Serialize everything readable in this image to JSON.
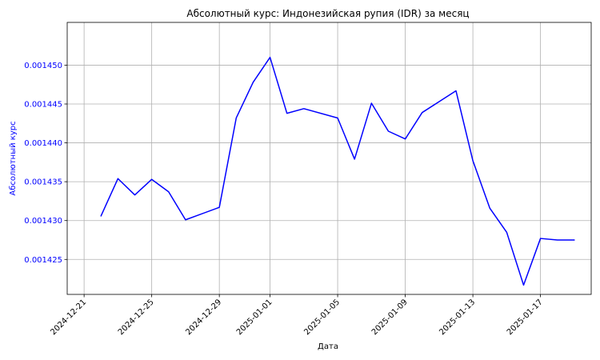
{
  "chart_data": {
    "type": "line",
    "title": "Абсолютный курс: Индонезийская рупия (IDR) за месяц",
    "xlabel": "Дата",
    "ylabel": "Абсолютный курс",
    "grid": true,
    "colors": {
      "line": "#0000ff",
      "ytick_text": "#0000ff",
      "ylabel_text": "#0000ff"
    },
    "xlim": [
      "2024-12-20",
      "2025-01-20"
    ],
    "ylim": [
      0.0014205,
      0.0014555
    ],
    "x_ticks": [
      "2024-12-21",
      "2024-12-25",
      "2024-12-29",
      "2025-01-01",
      "2025-01-05",
      "2025-01-09",
      "2025-01-13",
      "2025-01-17"
    ],
    "y_ticks": [
      0.001425,
      0.00143,
      0.001435,
      0.00144,
      0.001445,
      0.00145
    ],
    "y_tick_labels": [
      "0.001425",
      "0.001430",
      "0.001435",
      "0.001440",
      "0.001445",
      "0.001450"
    ],
    "series": [
      {
        "x": [
          "2024-12-22",
          "2024-12-23",
          "2024-12-24",
          "2024-12-25",
          "2024-12-26",
          "2024-12-27",
          "2024-12-29",
          "2024-12-30",
          "2024-12-31",
          "2025-01-01",
          "2025-01-02",
          "2025-01-03",
          "2025-01-05",
          "2025-01-06",
          "2025-01-07",
          "2025-01-08",
          "2025-01-09",
          "2025-01-10",
          "2025-01-12",
          "2025-01-13",
          "2025-01-14",
          "2025-01-15",
          "2025-01-16",
          "2025-01-17",
          "2025-01-18",
          "2025-01-19"
        ],
        "values": [
          0.0014306,
          0.0014354,
          0.0014333,
          0.0014353,
          0.0014337,
          0.0014301,
          0.0014317,
          0.0014432,
          0.0014478,
          0.001451,
          0.0014438,
          0.0014444,
          0.0014432,
          0.0014379,
          0.0014451,
          0.0014415,
          0.0014405,
          0.0014439,
          0.0014467,
          0.0014377,
          0.0014316,
          0.0014285,
          0.0014217,
          0.0014277,
          0.0014275,
          0.0014275
        ]
      }
    ]
  }
}
